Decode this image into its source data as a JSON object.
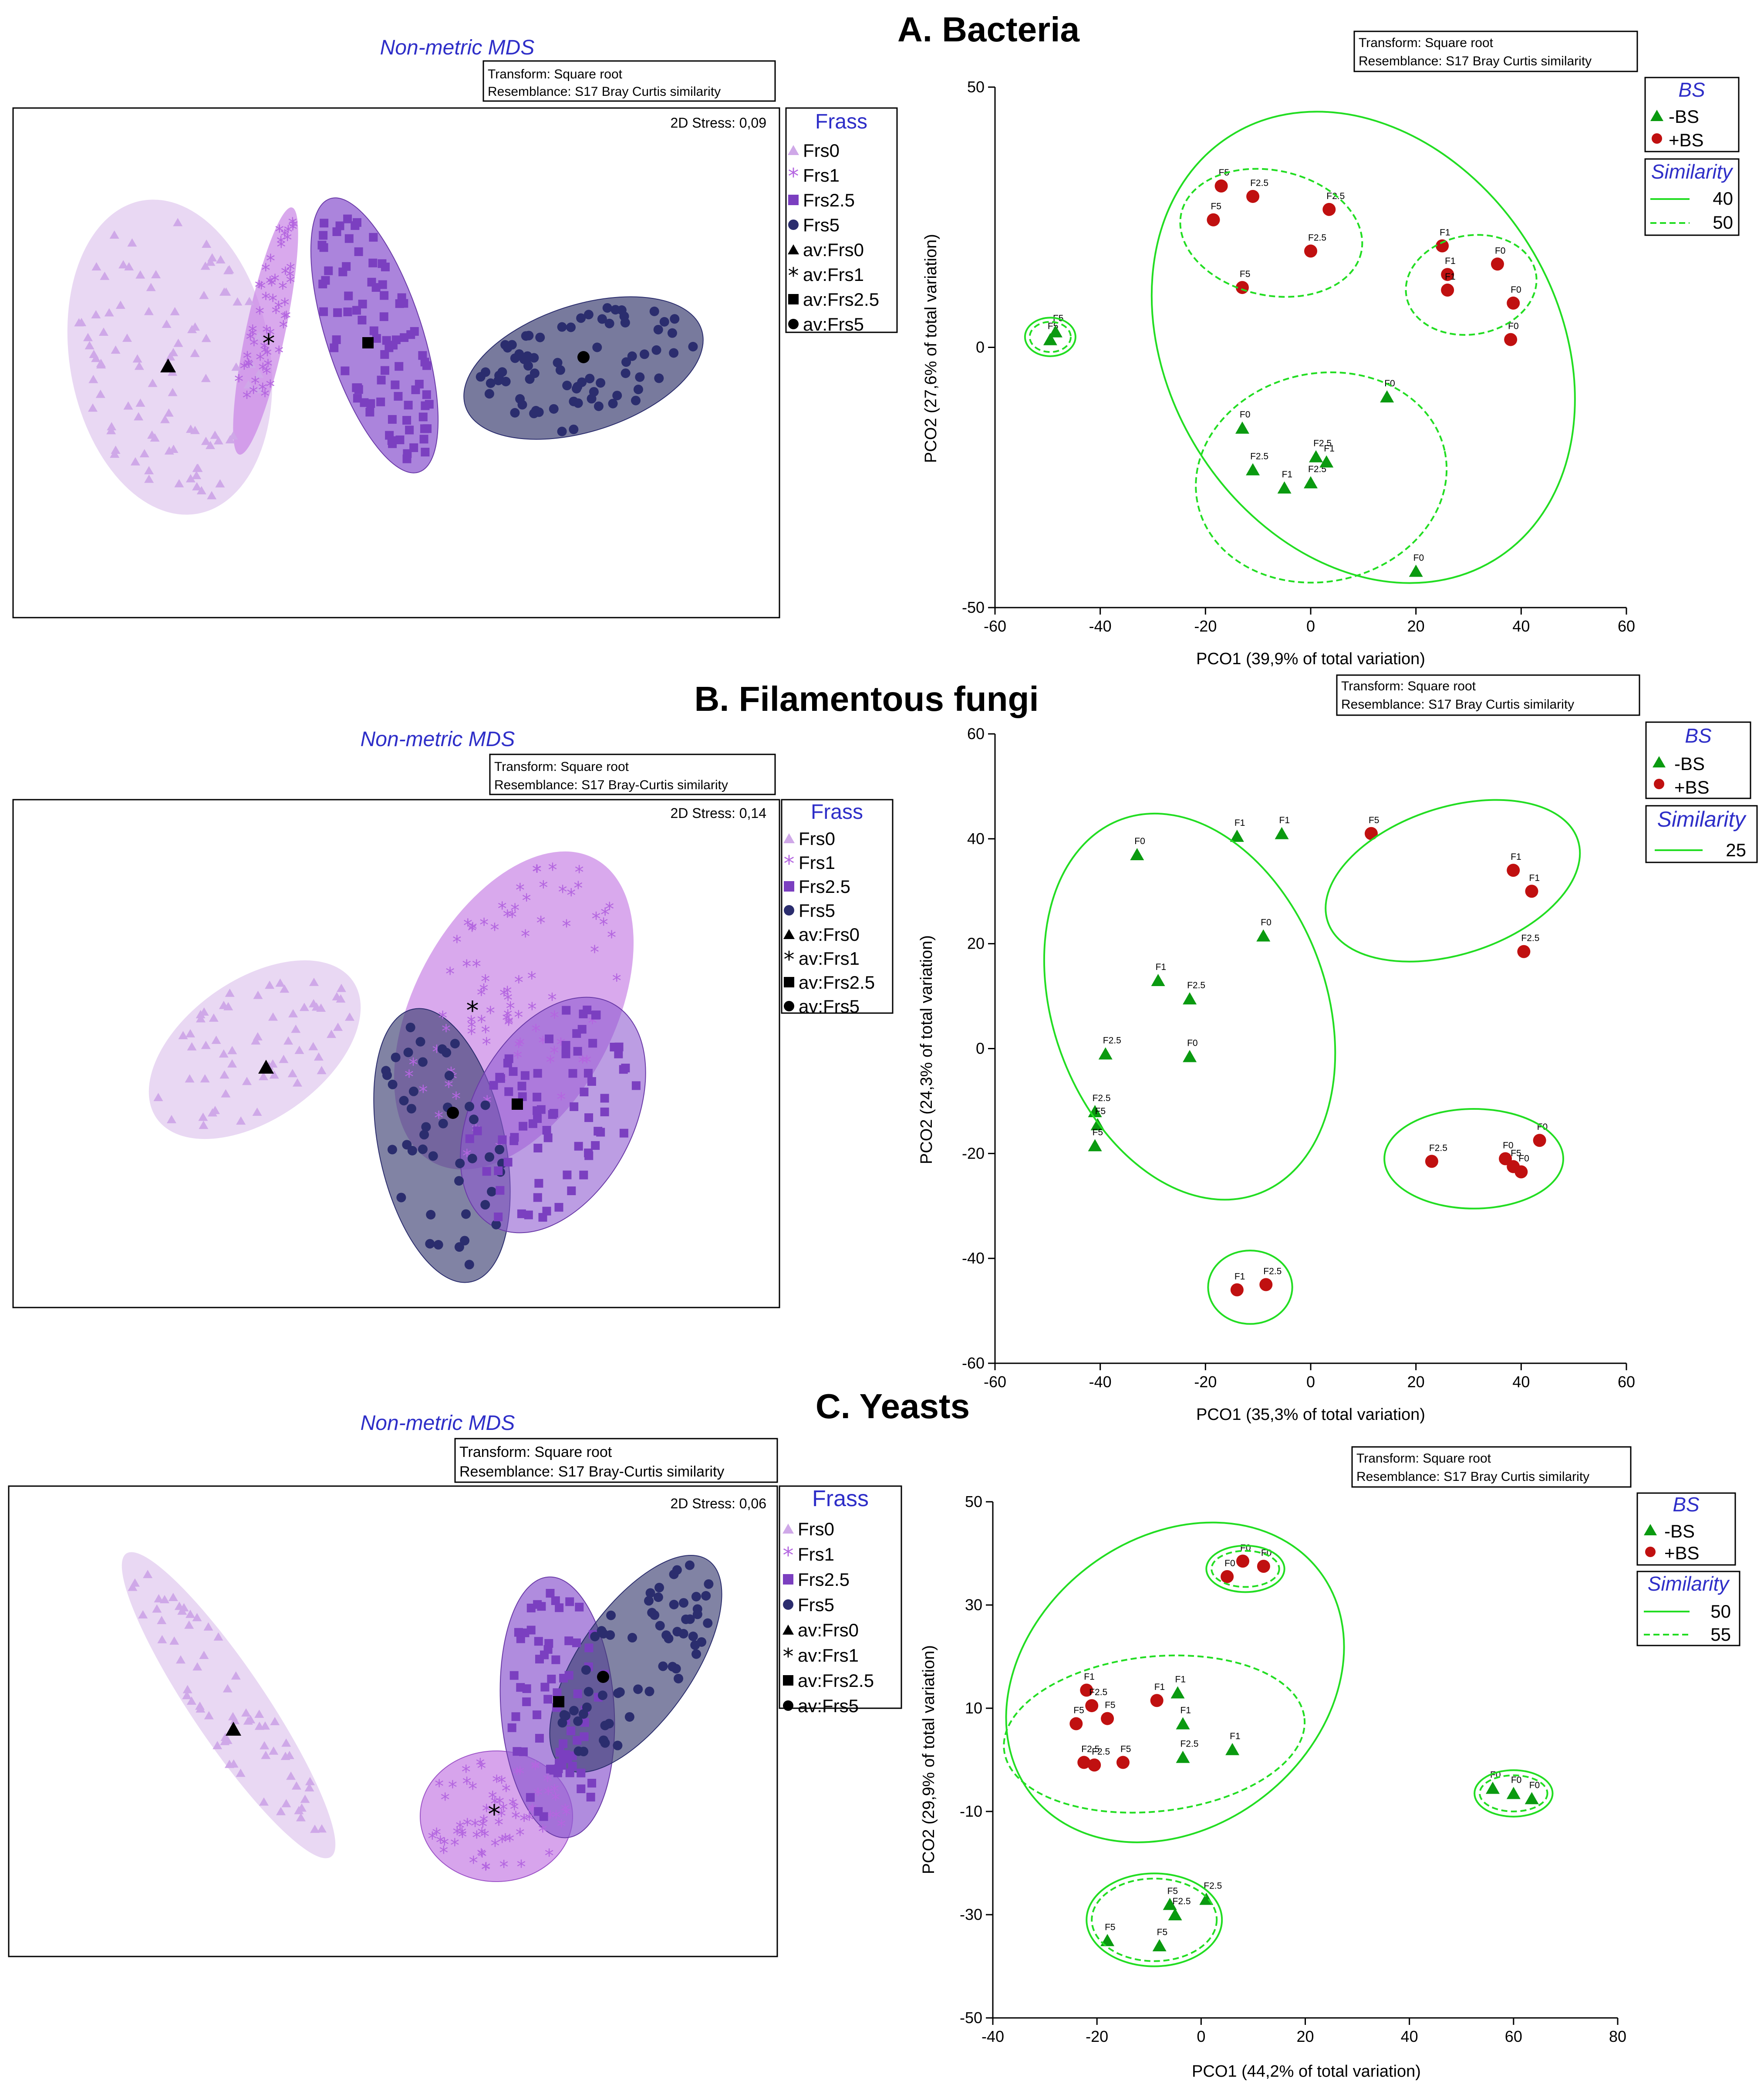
{
  "colors": {
    "frs0": "#e2cbef",
    "frs0_dark": "#cfa8e8",
    "frs1": "#b466e0",
    "frs1_fill": "#c985e6",
    "frs25": "#7b3fc0",
    "frs25_fill": "#8f5bd0",
    "frs5": "#2b2d6e",
    "frs5_fill": "#3e4173",
    "minus_bs": "#0a9a10",
    "plus_bs": "#c01010",
    "contour": "#22dd22",
    "header_blue": "#2e2ec8"
  },
  "sections": {
    "a": "A. Bacteria",
    "b": "B. Filamentous fungi",
    "c": "C. Yeasts"
  },
  "nmds": {
    "title": "Non-metric MDS",
    "transform": "Transform: Square root",
    "resemblance_a": "Resemblance: S17 Bray Curtis similarity",
    "resemblance_bc": "Resemblance: S17 Bray-Curtis similarity",
    "stress_a": "2D Stress: 0,09",
    "stress_b": "2D Stress: 0,14",
    "stress_c": "2D Stress: 0,06",
    "legend_title": "Frass",
    "legend_items": [
      "Frs0",
      "Frs1",
      "Frs2.5",
      "Frs5",
      "av:Frs0",
      "av:Frs1",
      "av:Frs2.5",
      "av:Frs5"
    ]
  },
  "pco": {
    "transform": "Transform: Square root",
    "resemblance": "Resemblance: S17 Bray Curtis similarity",
    "legend_title": "BS",
    "minus_label": "-BS",
    "plus_label": "+BS",
    "similarity_title": "Similarity"
  },
  "chart_data": [
    {
      "type": "scatter",
      "panel": "A. Bacteria PCO",
      "xlabel": "PCO1 (39,9% of total variation)",
      "ylabel": "PCO2 (27,6% of total variation)",
      "xlim": [
        -60,
        60
      ],
      "ylim": [
        -50,
        50
      ],
      "xticks": [
        -60,
        -40,
        -20,
        0,
        20,
        40,
        60
      ],
      "yticks": [
        -50,
        0,
        50
      ],
      "similarity_levels": [
        "40",
        "50"
      ],
      "series": [
        {
          "name": "-BS",
          "points": [
            {
              "x": -49.5,
              "y": 1.5,
              "label": "F5"
            },
            {
              "x": -48.5,
              "y": 3,
              "label": "F5"
            },
            {
              "x": 14.5,
              "y": -9.5,
              "label": "F0"
            },
            {
              "x": -13,
              "y": -15.5,
              "label": "F0"
            },
            {
              "x": -11,
              "y": -23.5,
              "label": "F2.5"
            },
            {
              "x": -5,
              "y": -27,
              "label": "F1"
            },
            {
              "x": 0,
              "y": -26,
              "label": "F2.5"
            },
            {
              "x": 1,
              "y": -21,
              "label": "F2.5"
            },
            {
              "x": 3,
              "y": -22,
              "label": "F1"
            },
            {
              "x": 20,
              "y": -43,
              "label": "F0"
            }
          ]
        },
        {
          "name": "+BS",
          "points": [
            {
              "x": -17,
              "y": 31,
              "label": "F5"
            },
            {
              "x": -11,
              "y": 29,
              "label": "F2.5"
            },
            {
              "x": -18.5,
              "y": 24.5,
              "label": "F5"
            },
            {
              "x": 3.5,
              "y": 26.5,
              "label": "F2.5"
            },
            {
              "x": -13,
              "y": 11.5,
              "label": "F5"
            },
            {
              "x": 0,
              "y": 18.5,
              "label": "F2.5"
            },
            {
              "x": 25,
              "y": 19.5,
              "label": "F1"
            },
            {
              "x": 26,
              "y": 14,
              "label": "F1"
            },
            {
              "x": 26,
              "y": 11,
              "label": "F1"
            },
            {
              "x": 35.5,
              "y": 16,
              "label": "F0"
            },
            {
              "x": 38.5,
              "y": 8.5,
              "label": "F0"
            },
            {
              "x": 38,
              "y": 1.5,
              "label": "F0"
            }
          ]
        }
      ]
    },
    {
      "type": "scatter",
      "panel": "B. Filamentous fungi PCO",
      "xlabel": "PCO1 (35,3% of total variation)",
      "ylabel": "PCO2 (24,3% of total variation)",
      "xlim": [
        -60,
        60
      ],
      "ylim": [
        -60,
        60
      ],
      "xticks": [
        -60,
        -40,
        -20,
        0,
        20,
        40,
        60
      ],
      "yticks": [
        -60,
        -40,
        -20,
        0,
        20,
        40,
        60
      ],
      "similarity_levels": [
        "25"
      ],
      "series": [
        {
          "name": "-BS",
          "points": [
            {
              "x": -33,
              "y": 37,
              "label": "F0"
            },
            {
              "x": -14,
              "y": 40.5,
              "label": "F1"
            },
            {
              "x": -5.5,
              "y": 41,
              "label": "F1"
            },
            {
              "x": -9,
              "y": 21.5,
              "label": "F0"
            },
            {
              "x": -29,
              "y": 13,
              "label": "F1"
            },
            {
              "x": -23,
              "y": 9.5,
              "label": "F2.5"
            },
            {
              "x": -39,
              "y": -1,
              "label": "F2.5"
            },
            {
              "x": -23,
              "y": -1.5,
              "label": "F0"
            },
            {
              "x": -41,
              "y": -12,
              "label": "F2.5"
            },
            {
              "x": -40.5,
              "y": -14.5,
              "label": "F5"
            },
            {
              "x": -41,
              "y": -18.5,
              "label": "F5"
            }
          ]
        },
        {
          "name": "+BS",
          "points": [
            {
              "x": 11.5,
              "y": 41,
              "label": "F5"
            },
            {
              "x": 38.5,
              "y": 34,
              "label": "F1"
            },
            {
              "x": 42,
              "y": 30,
              "label": "F1"
            },
            {
              "x": 40.5,
              "y": 18.5,
              "label": "F2.5"
            },
            {
              "x": 23,
              "y": -21.5,
              "label": "F2.5"
            },
            {
              "x": 37,
              "y": -21,
              "label": "F0"
            },
            {
              "x": 38.5,
              "y": -22.5,
              "label": "F5"
            },
            {
              "x": 40,
              "y": -23.5,
              "label": "F0"
            },
            {
              "x": 43.5,
              "y": -17.5,
              "label": "F0"
            },
            {
              "x": -14,
              "y": -46,
              "label": "F1"
            },
            {
              "x": -8.5,
              "y": -45,
              "label": "F2.5"
            }
          ]
        }
      ]
    },
    {
      "type": "scatter",
      "panel": "C. Yeasts PCO",
      "xlabel": "PCO1 (44,2% of total variation)",
      "ylabel": "PCO2 (29,9% of total variation)",
      "xlim": [
        -40,
        80
      ],
      "ylim": [
        -50,
        50
      ],
      "xticks": [
        -40,
        -20,
        0,
        20,
        40,
        60,
        80
      ],
      "yticks": [
        -50,
        -30,
        -10,
        10,
        30,
        50
      ],
      "similarity_levels": [
        "50",
        "55"
      ],
      "series": [
        {
          "name": "-BS",
          "points": [
            {
              "x": -4.5,
              "y": 13,
              "label": "F1"
            },
            {
              "x": -3.5,
              "y": 7,
              "label": "F1"
            },
            {
              "x": 6,
              "y": 2,
              "label": "F1"
            },
            {
              "x": -3.5,
              "y": 0.5,
              "label": "F2.5"
            },
            {
              "x": 56,
              "y": -5.5,
              "label": "F0"
            },
            {
              "x": 60,
              "y": -6.5,
              "label": "F0"
            },
            {
              "x": 63.5,
              "y": -7.5,
              "label": "F0"
            },
            {
              "x": -6,
              "y": -28,
              "label": "F5"
            },
            {
              "x": -5,
              "y": -30,
              "label": "F2.5"
            },
            {
              "x": 1,
              "y": -27,
              "label": "F2.5"
            },
            {
              "x": -18,
              "y": -35,
              "label": "F5"
            },
            {
              "x": -8,
              "y": -36,
              "label": "F5"
            }
          ]
        },
        {
          "name": "+BS",
          "points": [
            {
              "x": 8,
              "y": 38.5,
              "label": "F0"
            },
            {
              "x": 12,
              "y": 37.5,
              "label": "F0"
            },
            {
              "x": 5,
              "y": 35.5,
              "label": "F0"
            },
            {
              "x": -22,
              "y": 13.5,
              "label": "F1"
            },
            {
              "x": -21,
              "y": 10.5,
              "label": "F2.5"
            },
            {
              "x": -18,
              "y": 8,
              "label": "F5"
            },
            {
              "x": -24,
              "y": 7,
              "label": "F5"
            },
            {
              "x": -8.5,
              "y": 11.5,
              "label": "F1"
            },
            {
              "x": -22.5,
              "y": -0.5,
              "label": "F2.5"
            },
            {
              "x": -20.5,
              "y": -1,
              "label": "F2.5"
            },
            {
              "x": -15,
              "y": -0.5,
              "label": "F5"
            }
          ]
        }
      ]
    }
  ]
}
